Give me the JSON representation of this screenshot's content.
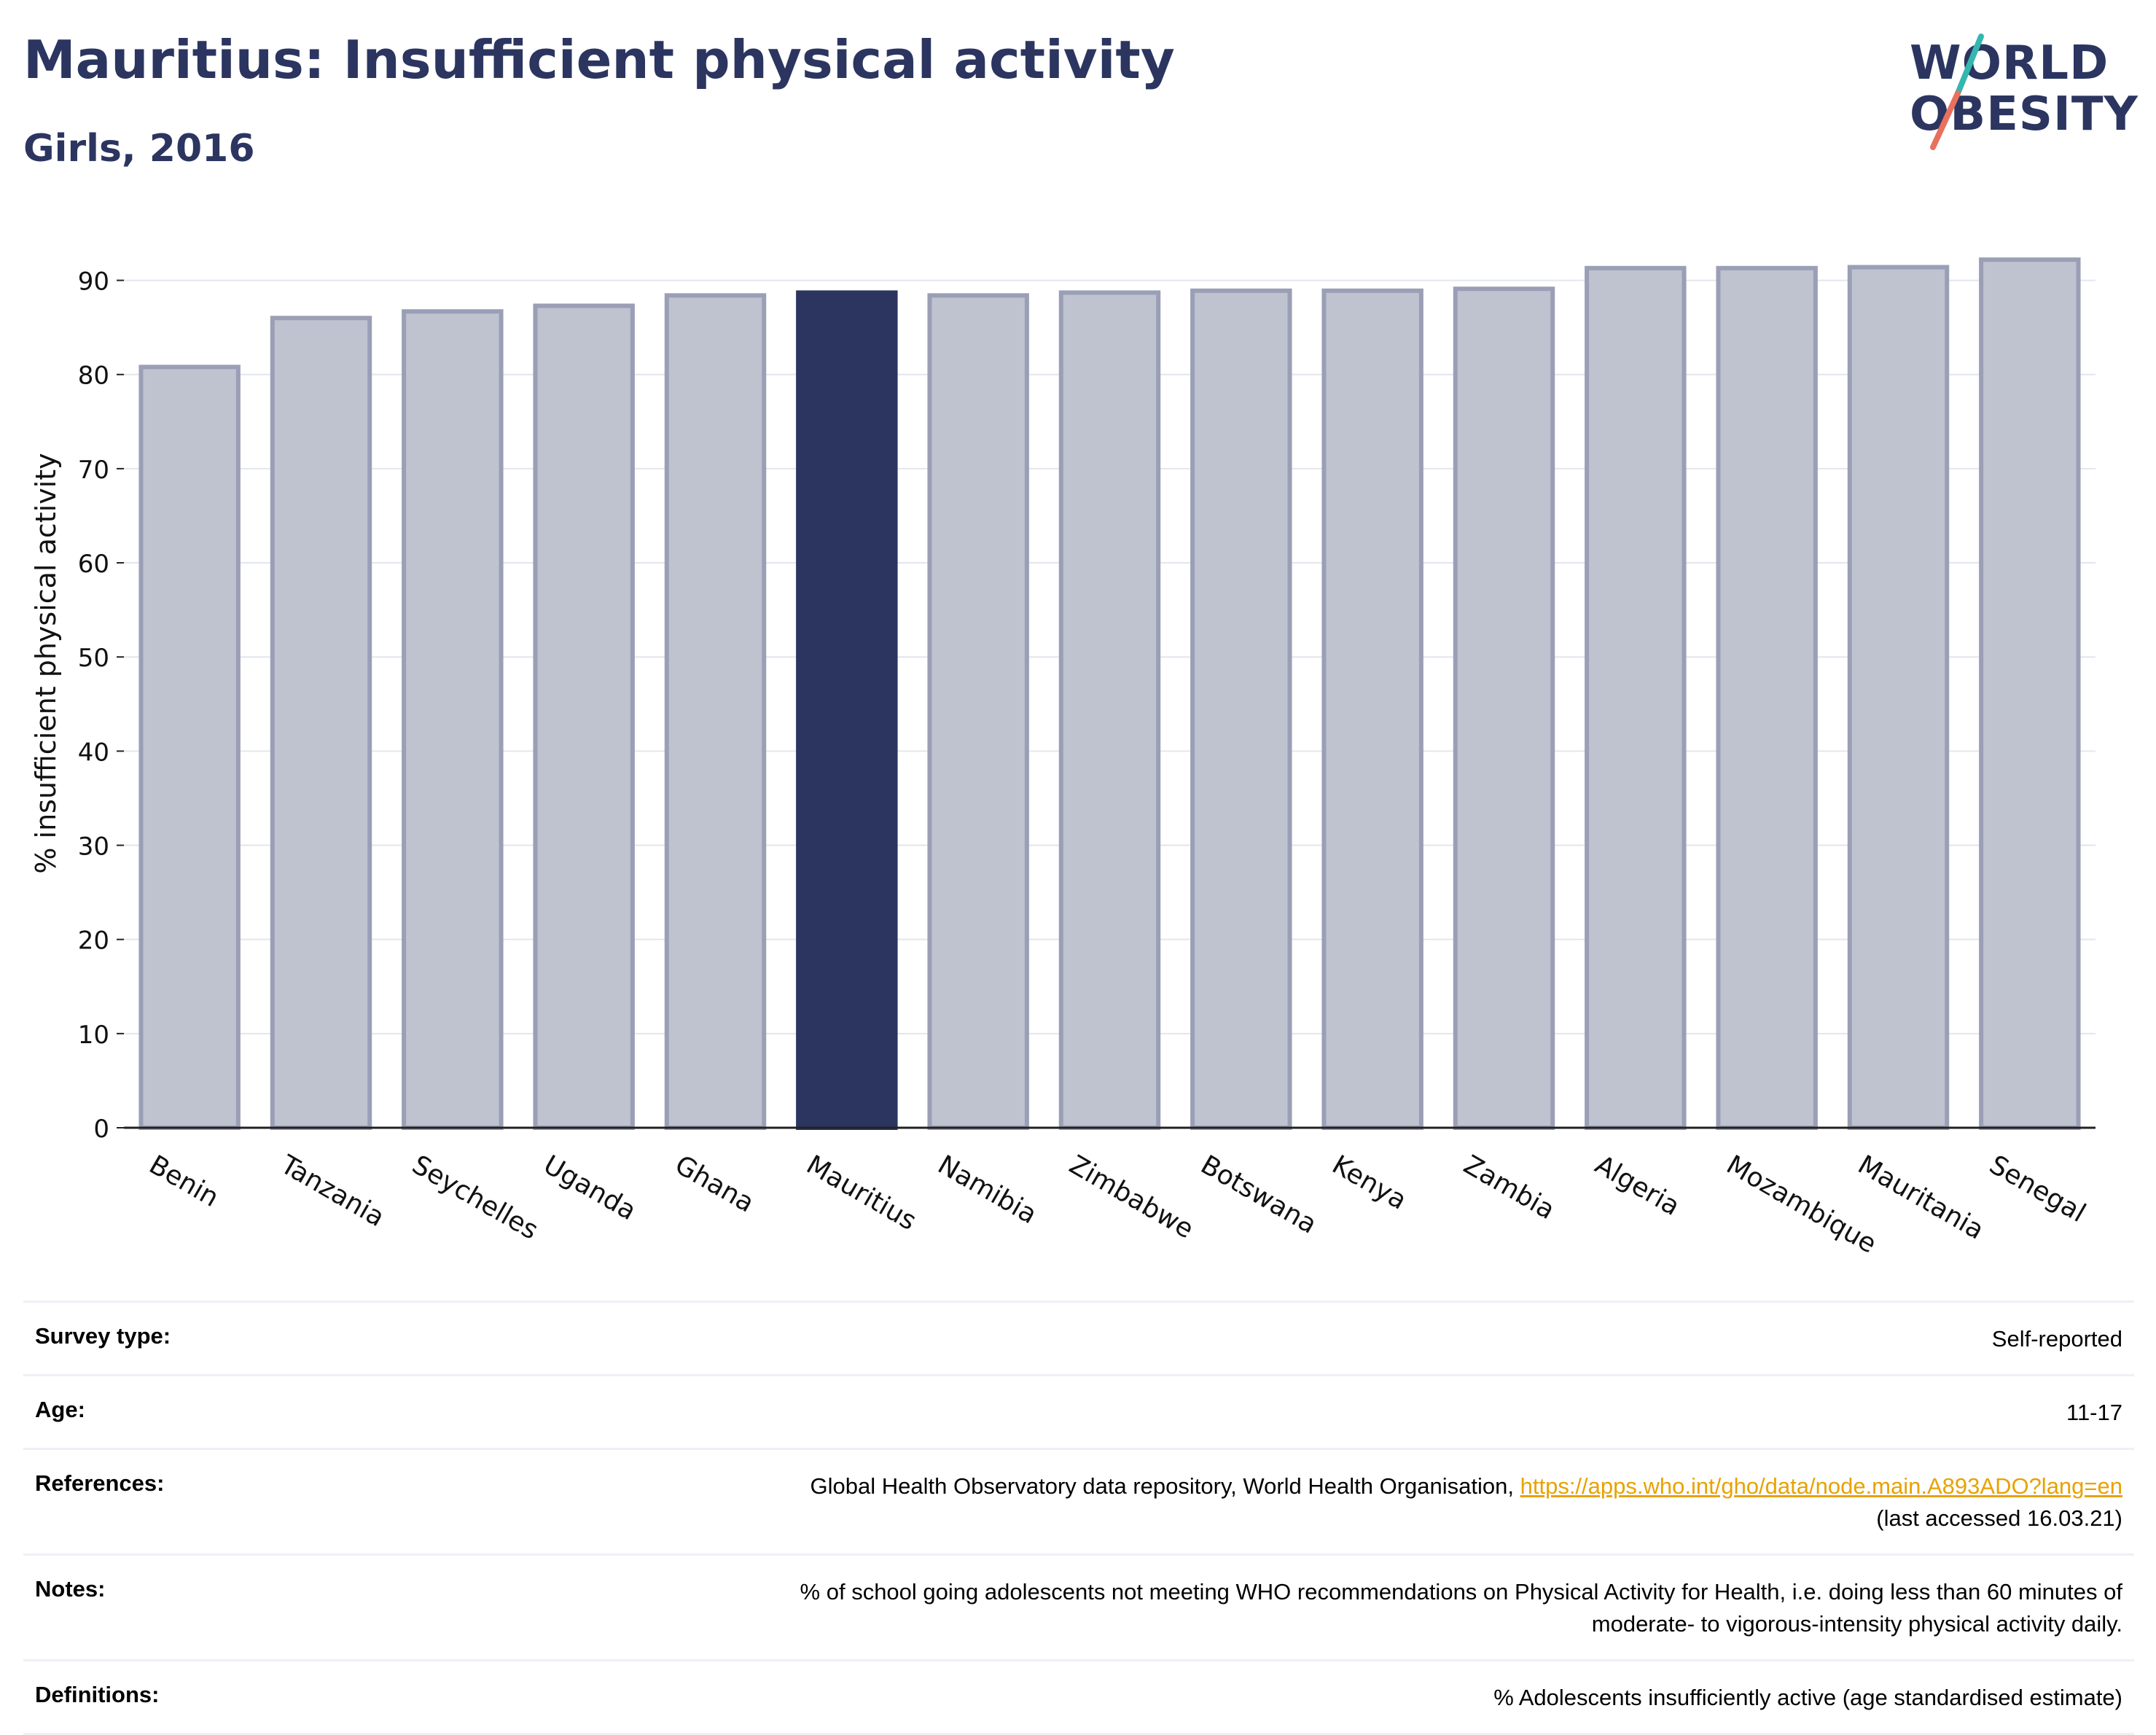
{
  "header": {
    "title": "Mauritius: Insufficient physical activity",
    "subtitle": "Girls, 2016",
    "logo_text": [
      "WORLD",
      "OBESITY"
    ]
  },
  "colors": {
    "bar": "#bfc2cf",
    "bar_border": "#9a9fb6",
    "highlight": "#2b3560",
    "logo_navy": "#2b3560",
    "logo_teal": "#35b7b0",
    "logo_coral": "#e8705d",
    "link": "#e8a200"
  },
  "chart_data": {
    "type": "bar",
    "categories": [
      "Benin",
      "Tanzania",
      "Seychelles",
      "Uganda",
      "Ghana",
      "Mauritius",
      "Namibia",
      "Zimbabwe",
      "Botswana",
      "Kenya",
      "Zambia",
      "Algeria",
      "Mozambique",
      "Mauritania",
      "Senegal"
    ],
    "values": [
      80.8,
      86.0,
      86.7,
      87.3,
      88.4,
      88.7,
      88.4,
      88.7,
      88.9,
      88.9,
      89.1,
      91.3,
      91.3,
      91.4,
      92.2
    ],
    "highlight": "Mauritius",
    "ylabel": "% insufficient physical activity",
    "xlabel": "",
    "ylim": [
      0,
      95
    ],
    "yticks": [
      0,
      10,
      20,
      30,
      40,
      50,
      60,
      70,
      80,
      90
    ],
    "grid": true
  },
  "meta": {
    "survey_type": {
      "label": "Survey type:",
      "value": "Self-reported"
    },
    "age": {
      "label": "Age:",
      "value": "11-17"
    },
    "references": {
      "label": "References:",
      "text": "Global Health Observatory data repository, World Health Organisation, ",
      "link": "https://apps.who.int/gho/data/node.main.A893ADO?lang=en",
      "accessed": "(last accessed 16.03.21)"
    },
    "notes": {
      "label": "Notes:",
      "line1": "% of school going adolescents not meeting WHO recommendations on Physical Activity for Health, i.e. doing less than 60 minutes of",
      "line2": "moderate- to vigorous-intensity physical activity daily."
    },
    "definitions": {
      "label": "Definitions:",
      "value": "% Adolescents insufficiently active (age standardised estimate)"
    }
  }
}
